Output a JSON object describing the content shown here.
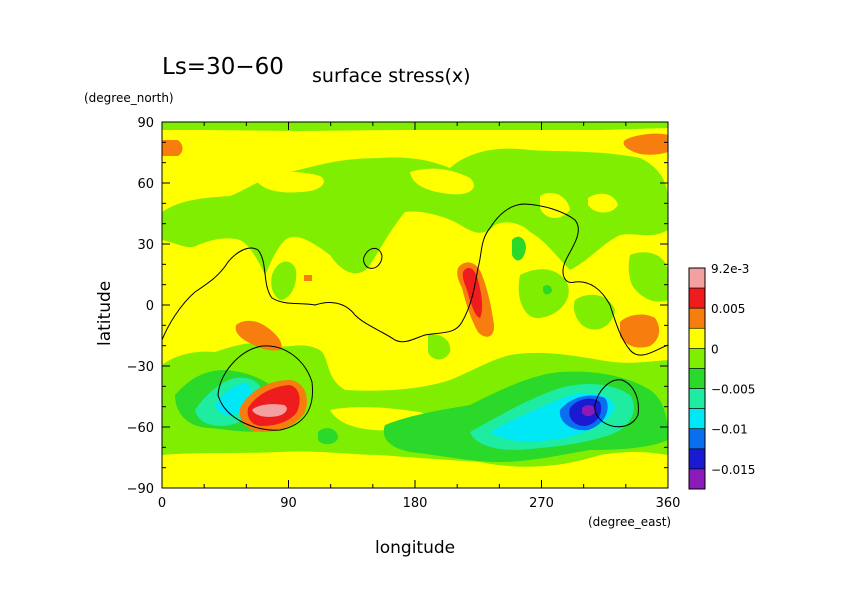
{
  "chart_data": {
    "type": "heatmap",
    "title": "Ls=30−60",
    "subtitle": "surface stress(x)",
    "xlabel": "longitude",
    "ylabel": "latitude",
    "x_unit": "(degree_east)",
    "y_unit": "(degree_north)",
    "xlim": [
      0,
      360
    ],
    "ylim": [
      -90,
      90
    ],
    "x_ticks": [
      "0",
      "90",
      "180",
      "270",
      "360"
    ],
    "y_ticks": [
      "90",
      "60",
      "30",
      "0",
      "−30",
      "−60",
      "−90"
    ],
    "colorbar": {
      "labels": [
        "9.2e-3",
        "0.005",
        "0",
        "−0.005",
        "−0.01",
        "−0.015"
      ],
      "levels": [
        {
          "min": 0.0075,
          "max": 0.0092,
          "color": "#f3a0a0"
        },
        {
          "min": 0.005,
          "max": 0.0075,
          "color": "#ee1c1c"
        },
        {
          "min": 0.0025,
          "max": 0.005,
          "color": "#f77d0f"
        },
        {
          "min": 0.0,
          "max": 0.0025,
          "color": "#ffff00"
        },
        {
          "min": -0.0025,
          "max": 0.0,
          "color": "#80ee00"
        },
        {
          "min": -0.005,
          "max": -0.0025,
          "color": "#2ad92a"
        },
        {
          "min": -0.0075,
          "max": -0.005,
          "color": "#1eeca0"
        },
        {
          "min": -0.01,
          "max": -0.0075,
          "color": "#00e8f5"
        },
        {
          "min": -0.0125,
          "max": -0.01,
          "color": "#0a6ef0"
        },
        {
          "min": -0.015,
          "max": -0.0125,
          "color": "#1a1ad2"
        },
        {
          "min": -0.0175,
          "max": -0.015,
          "color": "#8b1ab8"
        }
      ]
    },
    "contour_line": "topography contour (black)"
  }
}
